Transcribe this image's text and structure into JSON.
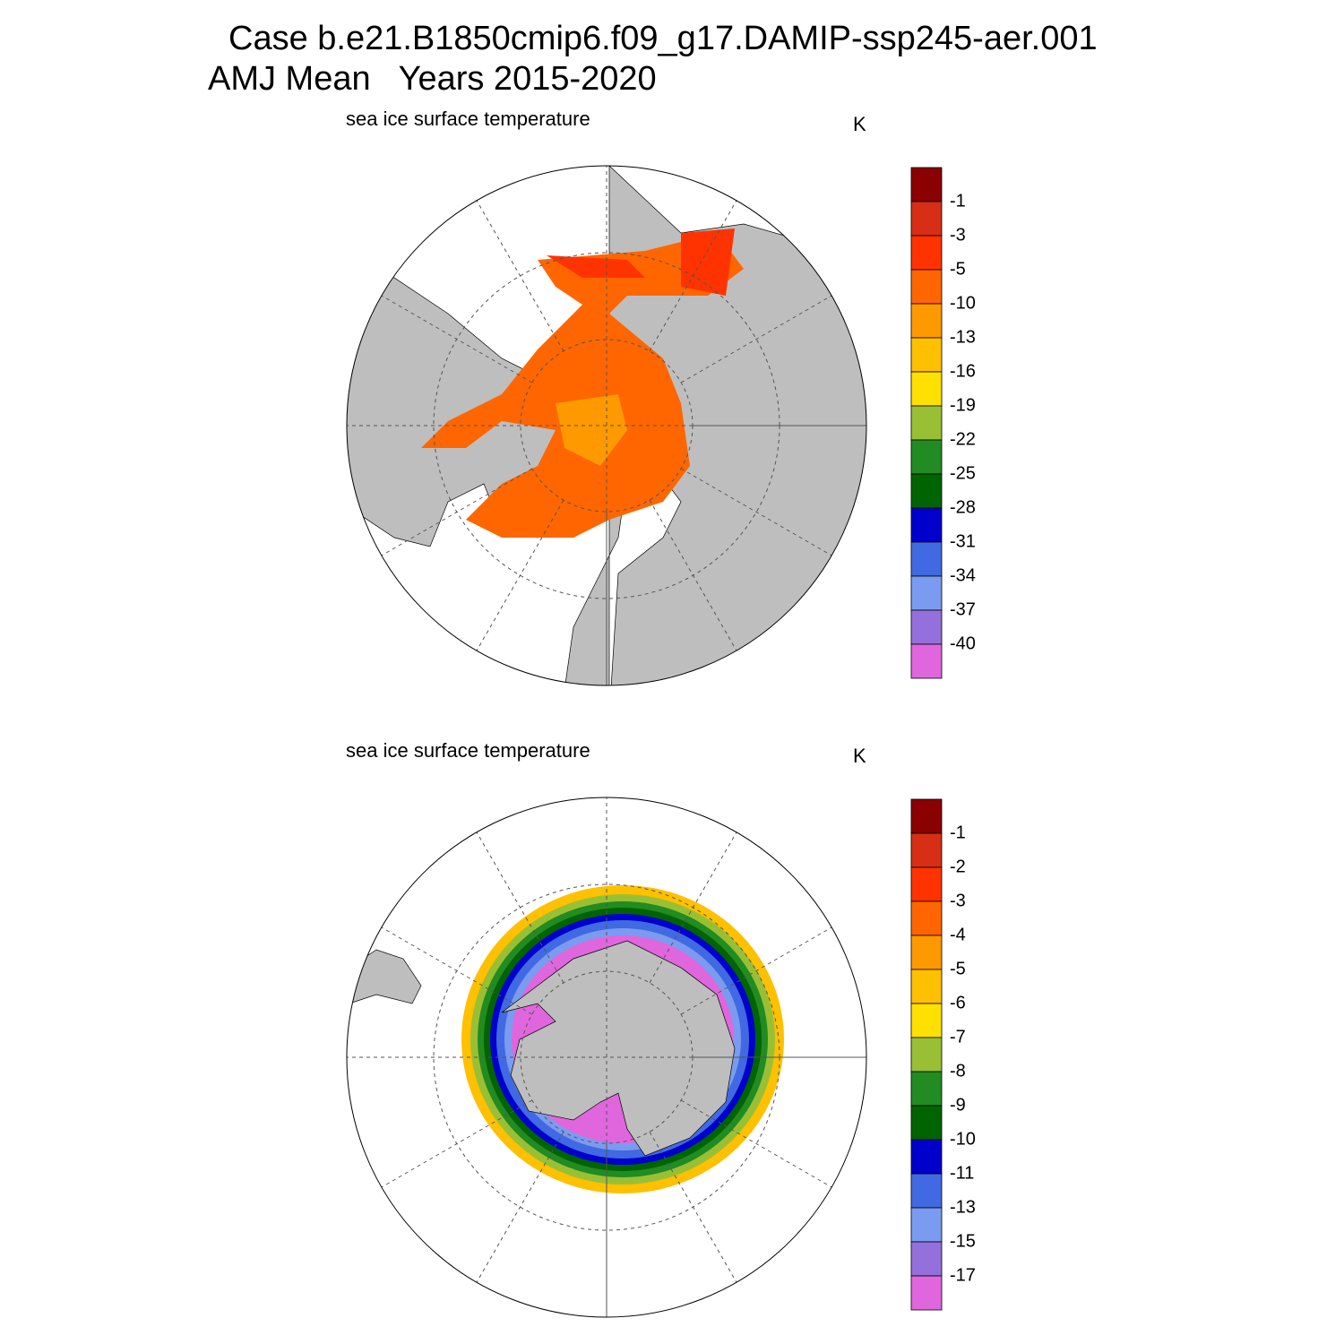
{
  "title": {
    "line1": "Case b.e21.B1850cmip6.f09_g17.DAMIP-ssp245-aer.001",
    "line2": "AMJ Mean   Years 2015-2020"
  },
  "panels": [
    {
      "subtitle": "sea ice surface temperature",
      "units": "K",
      "colorbar": {
        "labels": [
          -1,
          -3,
          -5,
          -10,
          -13,
          -16,
          -19,
          -22,
          -25,
          -28,
          -31,
          -34,
          -37,
          -40
        ],
        "colors": [
          "#8b0000",
          "#d62f15",
          "#ff3300",
          "#ff6600",
          "#ff9900",
          "#ffc000",
          "#ffe000",
          "#99c035",
          "#228b22",
          "#006400",
          "#0000cd",
          "#4169e1",
          "#7b9bf0",
          "#9370db",
          "#e066dd"
        ]
      }
    },
    {
      "subtitle": "sea ice surface temperature",
      "units": "K",
      "colorbar": {
        "labels": [
          -1,
          -2,
          -3,
          -4,
          -5,
          -6,
          -7,
          -8,
          -9,
          -10,
          -11,
          -13,
          -15,
          -17
        ],
        "colors": [
          "#8b0000",
          "#d62f15",
          "#ff3300",
          "#ff6600",
          "#ff9900",
          "#ffc000",
          "#ffe000",
          "#99c035",
          "#228b22",
          "#006400",
          "#0000cd",
          "#4169e1",
          "#7b9bf0",
          "#9370db",
          "#e066dd"
        ]
      }
    }
  ]
}
